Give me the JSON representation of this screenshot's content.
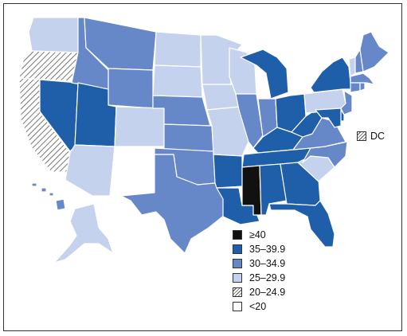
{
  "colors": {
    "ge40": "#111111",
    "35_39_9": "#1f5faa",
    "30_34_9": "#6688c8",
    "25_29_9": "#c5d2ee",
    "20_24_9": "hatch",
    "lt20": "#ffffff"
  },
  "legend": [
    {
      "key": "ge40",
      "label": "≥40"
    },
    {
      "key": "35_39_9",
      "label": "35–39.9"
    },
    {
      "key": "30_34_9",
      "label": "30–34.9"
    },
    {
      "key": "25_29_9",
      "label": "25–29.9"
    },
    {
      "key": "20_24_9",
      "label": "20–24.9"
    },
    {
      "key": "lt20",
      "label": "<20"
    }
  ],
  "dc": {
    "label": "DC",
    "category": "20_24_9"
  },
  "states": {
    "WA": "25_29_9",
    "OR": "20_24_9",
    "CA": "20_24_9",
    "NV": "35_39_9",
    "ID": "30_34_9",
    "MT": "30_34_9",
    "WY": "30_34_9",
    "UT": "35_39_9",
    "AZ": "25_29_9",
    "CO": "25_29_9",
    "NM": "lt20",
    "ND": "25_29_9",
    "SD": "25_29_9",
    "NE": "30_34_9",
    "KS": "30_34_9",
    "OK": "30_34_9",
    "TX": "30_34_9",
    "MN": "25_29_9",
    "IA": "25_29_9",
    "MO": "25_29_9",
    "AR": "35_39_9",
    "LA": "35_39_9",
    "WI": "25_29_9",
    "IL": "30_34_9",
    "MI": "35_39_9",
    "IN": "30_34_9",
    "OH": "35_39_9",
    "KY": "35_39_9",
    "TN": "35_39_9",
    "MS": "ge40",
    "AL": "35_39_9",
    "GA": "35_39_9",
    "FL": "35_39_9",
    "SC": "25_29_9",
    "NC": "30_34_9",
    "VA": "30_34_9",
    "WV": "35_39_9",
    "PA": "25_29_9",
    "NY": "35_39_9",
    "VT": "25_29_9",
    "NH": "30_34_9",
    "ME": "30_34_9",
    "MA": "30_34_9",
    "CT": "30_34_9",
    "RI": "30_34_9",
    "NJ": "30_34_9",
    "DE": "35_39_9",
    "MD": "35_39_9",
    "AK": "25_29_9",
    "HI": "30_34_9"
  }
}
